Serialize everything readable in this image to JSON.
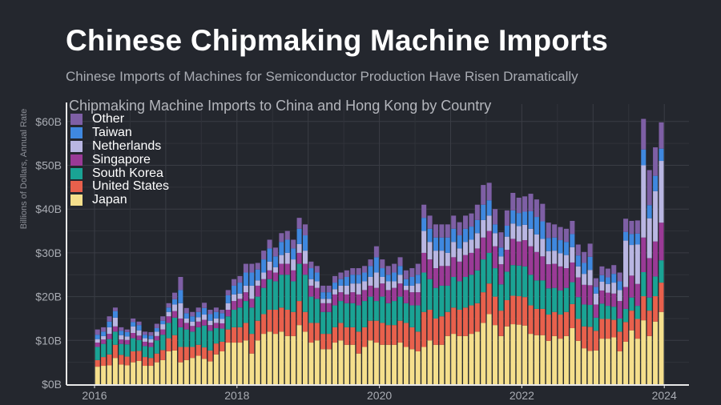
{
  "title": "Chinese Chipmaking Machine Imports",
  "subtitle": "Chinese Imports of Machines for Semiconductor Production Have Risen Dramatically",
  "chart_data": {
    "type": "bar",
    "stacked": true,
    "title": "Chipmaking Machine Imports to China and Hong Kong by Country",
    "ylabel": "Billions of Dollars, Annual Rate",
    "xlabel": "",
    "ylim": [
      0,
      62
    ],
    "yticks": [
      0,
      10,
      20,
      30,
      40,
      50,
      60
    ],
    "ytick_labels": [
      "$0B",
      "$10B",
      "$20B",
      "$30B",
      "$40B",
      "$50B",
      "$60B"
    ],
    "xticks": [
      "2016",
      "2018",
      "2020",
      "2022",
      "2024"
    ],
    "x_start": "2016-01",
    "x_frequency": "monthly",
    "legend_position": "top-left",
    "grid": true,
    "series": [
      {
        "name": "Japan",
        "color": "#f5df8c",
        "values": [
          4,
          4.2,
          4.3,
          6,
          4.5,
          4.3,
          5,
          5.3,
          4.2,
          4.2,
          5,
          5.5,
          7.5,
          7.7,
          5,
          5.5,
          6,
          6.5,
          5.8,
          5.2,
          6.8,
          7.5,
          9.5,
          9.5,
          9.5,
          10,
          7,
          10,
          11.5,
          12,
          11.5,
          12,
          11,
          11,
          13.5,
          12,
          9.5,
          10,
          8,
          8,
          9.5,
          10,
          9,
          9,
          7,
          8.5,
          10,
          9.5,
          9,
          9,
          9,
          9.5,
          8.5,
          8,
          7.5,
          8.5,
          10,
          9,
          9,
          11,
          11.5,
          11,
          11,
          11.5,
          12,
          14,
          16,
          13.5,
          11,
          13.2,
          13.7,
          13.6,
          13.4,
          11.5,
          11.2,
          11.2,
          9.9,
          11,
          10.4,
          11,
          12.8,
          9.9,
          8.2,
          7.6,
          7.7,
          10.4,
          10.4,
          10.7,
          7.5,
          9.7,
          12.3,
          10.4,
          14.6,
          11,
          14.3,
          16.5
        ]
      },
      {
        "name": "United States",
        "color": "#e8604c",
        "values": [
          1.5,
          2,
          2.5,
          3,
          2.2,
          2,
          2.5,
          2.3,
          2,
          1.8,
          2,
          2.3,
          3,
          3.5,
          3.5,
          3,
          2.5,
          2.5,
          2.6,
          2.5,
          2.5,
          2.2,
          3,
          3.5,
          3.5,
          4,
          4.5,
          4.5,
          4.5,
          5,
          5.5,
          5.5,
          6,
          5.5,
          5.5,
          4.5,
          4.5,
          4,
          3.5,
          3.5,
          3.5,
          4,
          4,
          4,
          5,
          4.5,
          4.5,
          5,
          5,
          4.5,
          4.5,
          5,
          5.5,
          5,
          4.5,
          8,
          7,
          6,
          6.5,
          5.5,
          6,
          6,
          6.5,
          6.5,
          6.5,
          7,
          7,
          6.5,
          5.8,
          6,
          6.5,
          6.5,
          6.5,
          6.5,
          6,
          6,
          6,
          5.5,
          5.5,
          5.5,
          5.5,
          5,
          5,
          5.5,
          4.5,
          4.5,
          4.5,
          4,
          4.5,
          4.5,
          4.5,
          4.5,
          5.5,
          5.8,
          5.8,
          6.7
        ]
      },
      {
        "name": "South Korea",
        "color": "#1aa394",
        "values": [
          3,
          3,
          3.5,
          3,
          2.5,
          2.8,
          3,
          2.5,
          2.5,
          2.5,
          3,
          3.5,
          3.5,
          4,
          4.5,
          4,
          3.5,
          4,
          5,
          4.5,
          3.5,
          3,
          3,
          4,
          4.5,
          5,
          6,
          5.5,
          6,
          7,
          6.5,
          7.5,
          8,
          7,
          8.5,
          8.5,
          6,
          5.5,
          5,
          5,
          5,
          5,
          5.5,
          5.5,
          6,
          6,
          5.5,
          4.5,
          6,
          5,
          5.5,
          5.5,
          4.5,
          5,
          6,
          9,
          7,
          7,
          7,
          6,
          7,
          6.5,
          7,
          7,
          7.5,
          7.5,
          7,
          6.5,
          6,
          6.5,
          7,
          7,
          7,
          7,
          6.5,
          6.5,
          6,
          5.5,
          5.5,
          5.5,
          5,
          5,
          5,
          5,
          3,
          3.5,
          3,
          3,
          3,
          3,
          3,
          3,
          5.5,
          3,
          4.5,
          5.1
        ]
      },
      {
        "name": "Singapore",
        "color": "#9a3a96",
        "values": [
          1,
          1,
          1.2,
          1.2,
          1,
          1,
          1.2,
          1,
          1,
          1,
          1,
          1.2,
          1.5,
          1.5,
          2,
          1.5,
          1.3,
          1.3,
          1.3,
          1.3,
          1.2,
          1.2,
          1.5,
          2,
          2,
          2,
          2,
          2.5,
          2,
          2,
          2,
          2.5,
          2.5,
          2.5,
          2.5,
          2.5,
          2.5,
          2.5,
          2,
          2,
          2.5,
          2,
          2,
          2.5,
          2.5,
          2.5,
          2.5,
          3,
          3,
          3,
          3,
          3,
          3,
          3,
          3,
          4.5,
          4.5,
          4.5,
          4.5,
          4.5,
          4.5,
          4.5,
          5,
          5,
          5,
          5,
          5,
          5,
          4.6,
          5,
          6,
          5.5,
          6,
          6.5,
          6.5,
          5.5,
          5.5,
          5.5,
          5.5,
          4.5,
          4.5,
          4.5,
          4.5,
          4.5,
          3,
          3,
          3,
          3,
          4,
          5,
          5,
          5,
          7.9,
          9,
          8,
          8.6
        ]
      },
      {
        "name": "Netherlands",
        "color": "#b9b6e2",
        "values": [
          0.8,
          0.8,
          1.5,
          2,
          1,
          0.8,
          1.5,
          1.2,
          0.8,
          0.8,
          1,
          1.2,
          1,
          1.5,
          3.5,
          1,
          1,
          1,
          1.2,
          1,
          1,
          1,
          1.5,
          1.5,
          1.2,
          1.5,
          3,
          1.2,
          1.5,
          2,
          1.2,
          2,
          2.5,
          2.5,
          2,
          3,
          1.5,
          1.5,
          1,
          1,
          1.2,
          1.5,
          2,
          2,
          2.5,
          2,
          2,
          3.5,
          1.5,
          2,
          1.5,
          2,
          1,
          1.5,
          2,
          5,
          4,
          4,
          3.5,
          3,
          3.5,
          3,
          3,
          3,
          3.5,
          4,
          3.5,
          3,
          1.8,
          3,
          3.5,
          3.5,
          3.5,
          4,
          4,
          4,
          3,
          3,
          3,
          3,
          3.5,
          2.5,
          2.5,
          3.5,
          2.5,
          2,
          2,
          2.5,
          2.5,
          10.6,
          7,
          9,
          16.5,
          9.1,
          11.5,
          14.1
        ]
      },
      {
        "name": "Taiwan",
        "color": "#3f88df",
        "values": [
          1,
          1,
          1.3,
          1.5,
          1,
          1,
          1,
          1.2,
          0.8,
          0.8,
          0.8,
          0.8,
          1,
          1.2,
          3,
          1.2,
          1.2,
          1.2,
          1.5,
          1.5,
          1.5,
          1.3,
          1.8,
          2,
          2.5,
          3,
          3,
          2.5,
          3,
          3,
          2.5,
          3,
          3,
          2.5,
          3.5,
          3.5,
          2.5,
          2,
          1.5,
          1.5,
          1.5,
          1.5,
          2,
          2,
          2,
          2,
          2.5,
          3.5,
          2,
          1.5,
          2,
          2,
          1.5,
          2,
          2,
          3,
          3,
          3,
          3,
          3.5,
          3,
          3,
          3,
          3,
          3,
          3.5,
          3.5,
          2,
          2,
          2.5,
          3,
          3,
          3,
          4,
          4,
          4,
          3,
          3,
          3,
          3,
          3,
          2.5,
          2.5,
          3,
          1.5,
          1.5,
          1.5,
          2,
          2,
          2,
          2.5,
          2.5,
          3.6,
          3,
          3.5,
          2.8
        ]
      },
      {
        "name": "Other",
        "color": "#7e5fa5",
        "values": [
          1.2,
          1,
          1.2,
          0.8,
          0.8,
          0.6,
          0.8,
          0.8,
          0.7,
          0.8,
          1,
          1,
          1,
          1.5,
          3,
          1.2,
          1,
          1,
          1.2,
          1,
          1,
          0.8,
          1.2,
          1.5,
          1.5,
          2,
          2,
          1.5,
          2,
          2,
          2,
          2,
          2,
          2,
          2.5,
          2.5,
          1.5,
          1.5,
          1.5,
          1.5,
          1.5,
          1.5,
          1.5,
          1.5,
          1.5,
          1.5,
          1.5,
          2.5,
          2,
          2,
          2,
          2,
          2,
          2,
          2.5,
          3,
          3,
          3,
          3,
          3,
          3,
          3,
          3,
          3,
          3.5,
          4.5,
          4,
          3.5,
          3.5,
          3.5,
          4,
          3.5,
          3.5,
          4,
          4,
          4,
          3.5,
          3,
          3,
          3,
          3,
          2.5,
          2.5,
          3,
          2,
          2,
          2,
          2,
          2,
          3,
          3,
          3,
          7,
          8,
          6.5,
          6
        ]
      }
    ]
  }
}
